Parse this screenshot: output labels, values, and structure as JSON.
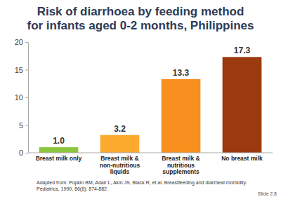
{
  "chart_data": {
    "type": "bar",
    "title": "Risk of diarrhoea by feeding method for infants aged 0-2 months, Philippines",
    "categories": [
      "Breast milk only",
      "Breast milk & non-nutritious liquids",
      "Breast milk & nutritious supplements",
      "No breast milk"
    ],
    "values": [
      1.0,
      3.2,
      13.3,
      17.3
    ],
    "value_labels": [
      "1.0",
      "3.2",
      "13.3",
      "17.3"
    ],
    "colors": [
      "#8dc63f",
      "#fbaa2e",
      "#f7901e",
      "#9b3a0e"
    ],
    "ylim": [
      0,
      20
    ],
    "yticks": [
      0,
      5,
      10,
      15,
      20
    ],
    "grid": false,
    "data_labels": true,
    "annotations": [
      "Adapted from: Popkin BM, Adair L, Akin JS, Black R, et al. Breastfeeding and diarrheal morbidity. Pediatrics, 1990, 86(6): 874-882.",
      "Slide 2.8"
    ]
  }
}
